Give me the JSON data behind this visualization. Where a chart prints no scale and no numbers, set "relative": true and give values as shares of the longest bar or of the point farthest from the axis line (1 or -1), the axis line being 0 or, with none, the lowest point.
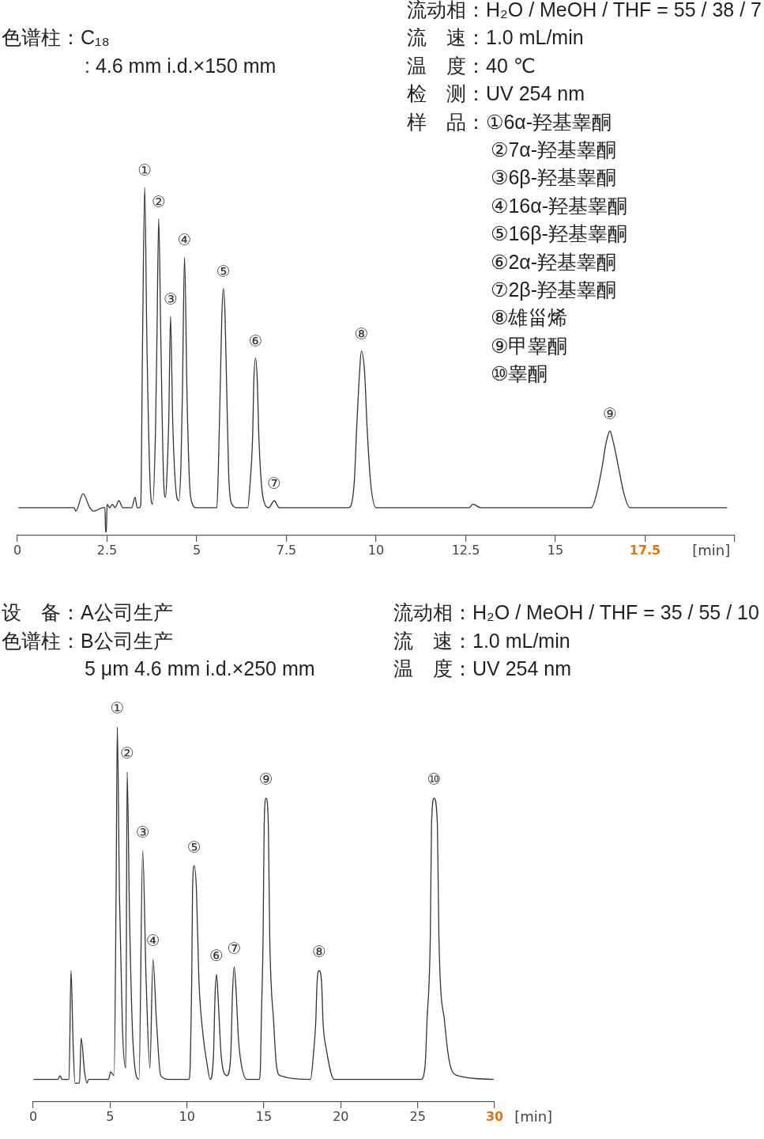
{
  "chart_data": [
    {
      "type": "line",
      "relative": true,
      "color": "#333333",
      "marker": "none",
      "xlabel": "[min]",
      "xlim": [
        0,
        20
      ],
      "xticks": [
        0,
        2.5,
        5,
        7.5,
        10,
        12.5,
        15,
        17.5,
        {
          "value": 20,
          "label": null
        }
      ],
      "x": [
        0.04,
        1.58,
        1.63,
        1.83,
        2.02,
        2.13,
        2.39,
        2.44,
        2.46,
        2.48,
        2.5,
        2.57,
        2.65,
        2.72,
        2.83,
        2.94,
        3.19,
        3.28,
        3.34,
        3.4,
        3.44,
        3.49,
        3.55,
        3.61,
        3.7,
        3.77,
        3.85,
        3.89,
        3.94,
        4.0,
        4.08,
        4.13,
        4.18,
        4.22,
        4.27,
        4.33,
        4.42,
        4.5,
        4.56,
        4.6,
        4.66,
        4.73,
        4.8,
        4.85,
        4.99,
        5.4,
        5.56,
        5.6,
        5.65,
        5.7,
        5.74,
        5.79,
        5.84,
        5.89,
        5.98,
        6.13,
        6.42,
        6.48,
        6.56,
        6.59,
        6.64,
        6.69,
        6.73,
        6.81,
        6.9,
        7.01,
        7.16,
        7.3,
        9.23,
        9.39,
        9.46,
        9.54,
        9.59,
        9.68,
        9.75,
        9.85,
        10.0,
        11.08,
        12.6,
        12.69,
        12.92,
        14.15,
        16.0,
        16.15,
        16.29,
        16.42,
        16.52,
        16.61,
        16.77,
        16.91,
        17.07,
        19.78
      ],
      "values": [
        0.08,
        0.08,
        0.07,
        0.12,
        0.08,
        0.07,
        0.08,
        0.08,
        0.01,
        0.01,
        0.09,
        0.08,
        0.09,
        0.08,
        0.1,
        0.08,
        0.08,
        0.11,
        0.08,
        0.08,
        0.09,
        0.56,
        1.0,
        0.56,
        0.15,
        0.09,
        0.3,
        0.56,
        0.91,
        0.56,
        0.15,
        0.11,
        0.2,
        0.33,
        0.63,
        0.33,
        0.13,
        0.1,
        0.2,
        0.4,
        0.8,
        0.4,
        0.15,
        0.1,
        0.08,
        0.08,
        0.08,
        0.18,
        0.4,
        0.63,
        0.71,
        0.63,
        0.4,
        0.18,
        0.09,
        0.08,
        0.08,
        0.14,
        0.29,
        0.44,
        0.51,
        0.44,
        0.29,
        0.14,
        0.09,
        0.08,
        0.1,
        0.08,
        0.08,
        0.15,
        0.31,
        0.47,
        0.53,
        0.47,
        0.31,
        0.15,
        0.08,
        0.08,
        0.08,
        0.09,
        0.08,
        0.08,
        0.08,
        0.12,
        0.19,
        0.27,
        0.3,
        0.27,
        0.19,
        0.12,
        0.08,
        0.08
      ],
      "annotations": [
        "色谱柱：C₁₈",
        ": 4.6 mm i.d.×150 mm",
        "流动相：H₂O / MeOH / THF = 55 / 38 / 7",
        "流　速：1.0 mL/min",
        "温　度：40 ℃",
        "检　测：UV 254 nm",
        "样　品：①6α-羟基睾酮",
        "②7α-羟基睾酮",
        "③6β-羟基睾酮",
        "④16α-羟基睾酮",
        "⑤16β-羟基睾酮",
        "⑥2α-羟基睾酮",
        "⑦2β-羟基睾酮",
        "⑧雄甾烯",
        "⑨甲睾酮",
        "⑩睾酮",
        {
          "text": "①",
          "x": 3.55,
          "y": 1.0
        },
        {
          "text": "②",
          "x": 3.94,
          "y": 0.91
        },
        {
          "text": "③",
          "x": 4.27,
          "y": 0.63
        },
        {
          "text": "④",
          "x": 4.66,
          "y": 0.8
        },
        {
          "text": "⑤",
          "x": 5.74,
          "y": 0.71
        },
        {
          "text": "⑥",
          "x": 6.64,
          "y": 0.51
        },
        {
          "text": "⑦",
          "x": 7.16,
          "y": 0.1
        },
        {
          "text": "⑧",
          "x": 9.59,
          "y": 0.53
        },
        {
          "text": "⑨",
          "x": 16.52,
          "y": 0.3
        }
      ]
    },
    {
      "type": "line",
      "relative": true,
      "color": "#333333",
      "marker": "none",
      "xlabel": "[min]",
      "xlim": [
        0,
        30
      ],
      "xticks": [
        0,
        5,
        10,
        15,
        20,
        25,
        30
      ],
      "x": [
        0.04,
        1.6,
        1.75,
        1.87,
        2.33,
        2.46,
        2.6,
        2.72,
        3.01,
        3.12,
        3.34,
        3.49,
        3.61,
        4.9,
        5.03,
        5.26,
        5.39,
        5.47,
        5.61,
        5.8,
        6.02,
        6.11,
        6.27,
        6.5,
        6.88,
        7.12,
        7.34,
        7.59,
        7.79,
        8.01,
        8.29,
        8.84,
        10.12,
        10.21,
        10.25,
        10.31,
        10.36,
        10.47,
        10.62,
        10.77,
        11.04,
        11.31,
        11.5,
        11.72,
        11.83,
        11.92,
        12.01,
        12.14,
        12.23,
        12.6,
        12.84,
        12.96,
        13.07,
        13.2,
        13.33,
        13.46,
        13.88,
        14.69,
        14.78,
        14.83,
        14.95,
        15.02,
        15.14,
        15.29,
        15.38,
        15.64,
        15.81,
        16.06,
        18.03,
        18.25,
        18.37,
        18.46,
        18.59,
        18.75,
        18.85,
        19.06,
        19.57,
        25.22,
        25.49,
        25.6,
        25.82,
        25.9,
        26.07,
        26.28,
        26.38,
        26.76,
        27.1,
        27.61,
        29.92
      ],
      "values": [
        0.06,
        0.06,
        0.07,
        0.06,
        0.06,
        0.35,
        0.15,
        0.05,
        0.05,
        0.17,
        0.08,
        0.05,
        0.06,
        0.06,
        0.08,
        0.07,
        0.55,
        1.0,
        0.55,
        0.2,
        0.09,
        0.88,
        0.48,
        0.15,
        0.06,
        0.67,
        0.33,
        0.09,
        0.38,
        0.22,
        0.07,
        0.06,
        0.06,
        0.1,
        0.18,
        0.33,
        0.56,
        0.63,
        0.56,
        0.33,
        0.18,
        0.1,
        0.06,
        0.12,
        0.29,
        0.34,
        0.29,
        0.18,
        0.12,
        0.07,
        0.12,
        0.29,
        0.36,
        0.29,
        0.18,
        0.12,
        0.06,
        0.06,
        0.1,
        0.21,
        0.44,
        0.74,
        0.81,
        0.74,
        0.44,
        0.21,
        0.1,
        0.07,
        0.06,
        0.14,
        0.21,
        0.32,
        0.35,
        0.32,
        0.21,
        0.14,
        0.06,
        0.06,
        0.1,
        0.21,
        0.44,
        0.74,
        0.81,
        0.74,
        0.44,
        0.21,
        0.1,
        0.07,
        0.06
      ],
      "annotations": [
        "设　备：A公司生产",
        "色谱柱：B公司生产",
        "5 μm 4.6 mm i.d.×250 mm",
        "流动相：H₂O / MeOH / THF = 35 / 55 / 10",
        "流　速：1.0 mL/min",
        "温　度：UV 254 nm",
        {
          "text": "①",
          "x": 5.47,
          "y": 1.0
        },
        {
          "text": "②",
          "x": 6.11,
          "y": 0.88
        },
        {
          "text": "③",
          "x": 7.12,
          "y": 0.67
        },
        {
          "text": "④",
          "x": 7.79,
          "y": 0.38
        },
        {
          "text": "⑤",
          "x": 10.47,
          "y": 0.63
        },
        {
          "text": "⑥",
          "x": 11.92,
          "y": 0.34
        },
        {
          "text": "⑦",
          "x": 13.07,
          "y": 0.36
        },
        {
          "text": "⑧",
          "x": 18.59,
          "y": 0.35
        },
        {
          "text": "⑨",
          "x": 15.14,
          "y": 0.81
        },
        {
          "text": "⑩",
          "x": 26.07,
          "y": 0.81
        }
      ]
    }
  ]
}
